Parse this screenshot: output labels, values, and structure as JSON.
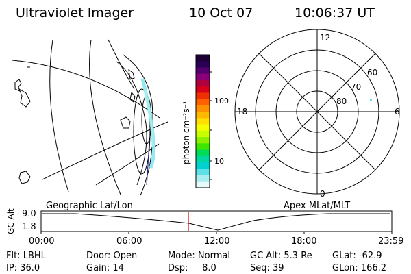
{
  "header": {
    "instrument": "Ultraviolet Imager",
    "date": "10 Oct 07",
    "time": "10:06:37 UT"
  },
  "colorbar": {
    "unit_label": "photon cm⁻²s⁻¹",
    "ticks": [
      "100",
      "10"
    ],
    "colors": [
      "#1a0033",
      "#2a0055",
      "#55006e",
      "#8a007a",
      "#b00040",
      "#d8001a",
      "#ee3000",
      "#ff6000",
      "#ff9000",
      "#ffb800",
      "#ffe000",
      "#f4ff00",
      "#c8ff00",
      "#8cf000",
      "#3ee600",
      "#00dc55",
      "#00d8a0",
      "#00d2d2",
      "#5ee0e8",
      "#a8eef0",
      "#e6fafa"
    ]
  },
  "polar_plot": {
    "mlt_labels": [
      "12",
      "6",
      "0",
      "18"
    ],
    "lat_labels": [
      "60",
      "70",
      "80"
    ]
  },
  "timeline": {
    "left_label": "Geographic Lat/Lon",
    "right_label": "Apex MLat/MLT",
    "axis_title": "GC Alt",
    "y_ticks": [
      "9.0",
      "1.8"
    ],
    "x_ticks": [
      "00:00",
      "06:00",
      "12:00",
      "18:00",
      "23:59"
    ],
    "cursor_color": "#d00000"
  },
  "status": {
    "rows": [
      [
        "Flt: LBHL",
        "Door: Open",
        "Mode: Normal",
        "GC Alt: 5.3 Re",
        "GLat: -62.9"
      ],
      [
        "IP: 36.0",
        "Gain: 14",
        "Dsp:     8.0",
        "Seq: 39",
        "GLon: 166.2"
      ]
    ]
  }
}
